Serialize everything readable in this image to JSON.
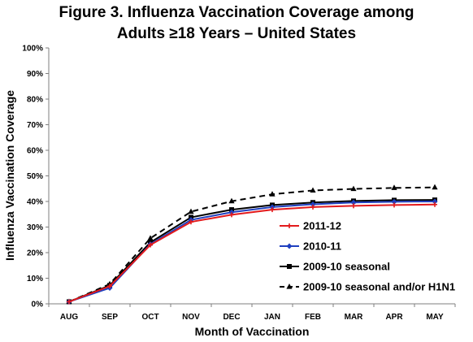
{
  "chart_data": {
    "type": "line",
    "title_lines": [
      "Figure 3. Influenza Vaccination Coverage among",
      "Adults ≥18 Years – United States"
    ],
    "xlabel": "Month of Vaccination",
    "ylabel": "Influenza Vaccination Coverage",
    "categories": [
      "AUG",
      "SEP",
      "OCT",
      "NOV",
      "DEC",
      "JAN",
      "FEB",
      "MAR",
      "APR",
      "MAY"
    ],
    "ylim": [
      0,
      100
    ],
    "yticks": [
      "0%",
      "10%",
      "20%",
      "30%",
      "40%",
      "50%",
      "60%",
      "70%",
      "80%",
      "90%",
      "100%"
    ],
    "ytick_values": [
      0,
      10,
      20,
      30,
      40,
      50,
      60,
      70,
      80,
      90,
      100
    ],
    "grid": false,
    "legend_position": "lower-right",
    "series": [
      {
        "name": "2011-12",
        "color": "#e31a1c",
        "style": "solid",
        "marker": "plus",
        "values": [
          0.8,
          6.9,
          23.0,
          32.0,
          34.8,
          36.8,
          37.8,
          38.3,
          38.6,
          38.8
        ]
      },
      {
        "name": "2010-11",
        "color": "#1f3fbf",
        "style": "solid",
        "marker": "diamond",
        "values": [
          0.8,
          6.2,
          23.3,
          32.8,
          35.8,
          37.8,
          38.9,
          39.6,
          39.9,
          40.0
        ]
      },
      {
        "name": "2009-10 seasonal",
        "color": "#000000",
        "style": "solid",
        "marker": "square",
        "values": [
          0.8,
          7.2,
          24.0,
          33.8,
          36.8,
          38.6,
          39.6,
          40.2,
          40.5,
          40.6
        ]
      },
      {
        "name": "2009-10 seasonal and/or H1N1",
        "color": "#000000",
        "style": "dashed",
        "marker": "triangle",
        "values": [
          0.8,
          7.7,
          25.6,
          36.0,
          40.1,
          42.8,
          44.3,
          44.9,
          45.3,
          45.5
        ]
      }
    ]
  }
}
